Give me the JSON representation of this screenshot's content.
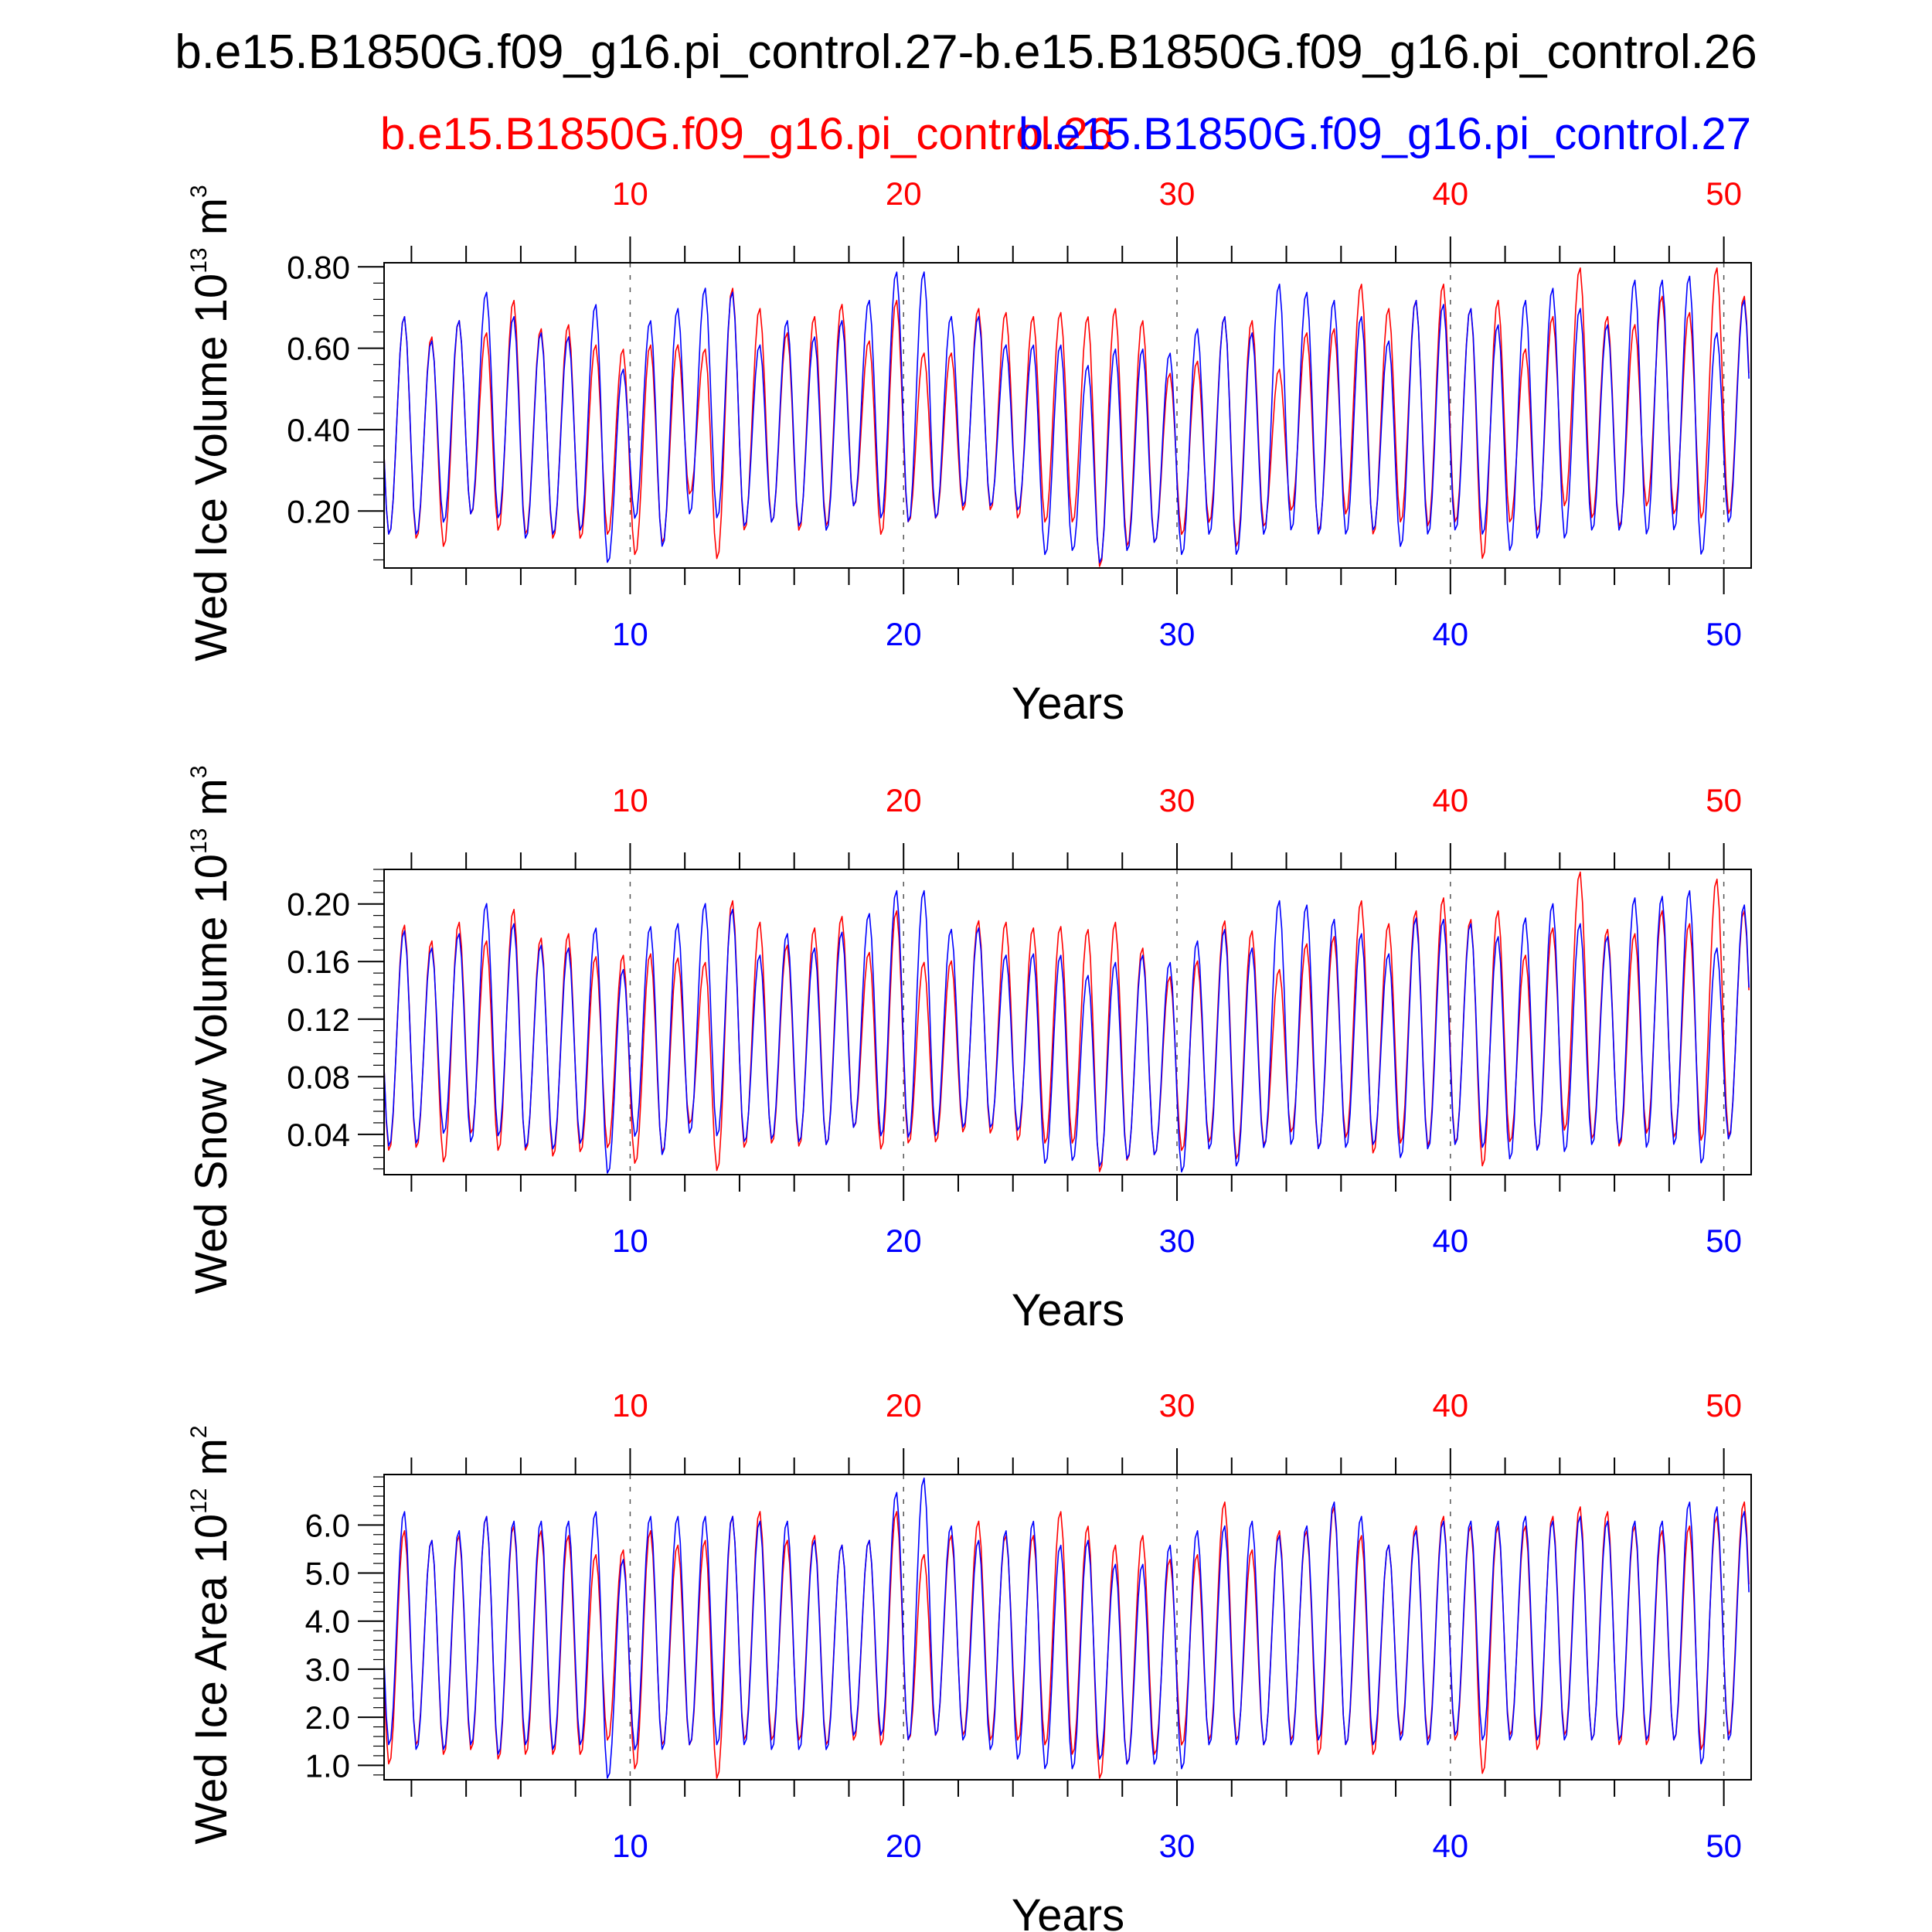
{
  "figure": {
    "title": "b.e15.B1850G.f09_g16.pi_control.27-b.e15.B1850G.f09_g16.pi_control.26",
    "legend_left": "b.e15.B1850G.f09_g16.pi_control.26",
    "legend_right": "b.e15.B1850G.f09_g16.pi_control.27",
    "color_case1": "#ff0000",
    "color_case2": "#0000ff"
  },
  "chart_data": [
    {
      "type": "line",
      "title": "",
      "ylabel": "Wed Ice Volume 10",
      "ylabel_exp": "13",
      "ylabel_unit": "m",
      "ylabel_unit_exp": "3",
      "xlabel": "Years",
      "xlim": [
        1,
        51
      ],
      "ylim": [
        0.06,
        0.81
      ],
      "xticks": [
        10,
        20,
        30,
        40,
        50
      ],
      "yticks": [
        0.2,
        0.4,
        0.6,
        0.8
      ],
      "ytick_labels": [
        "0.20",
        "0.40",
        "0.60",
        "0.80"
      ],
      "yminor_step": 0.04,
      "series": [
        {
          "name": "b.e15.B1850G.f09_g16.pi_control.26",
          "color": "#ff0000",
          "annual_max": [
            0.68,
            0.63,
            0.67,
            0.64,
            0.72,
            0.65,
            0.66,
            0.61,
            0.6,
            0.61,
            0.61,
            0.6,
            0.75,
            0.7,
            0.64,
            0.68,
            0.71,
            0.62,
            0.72,
            0.59,
            0.59,
            0.7,
            0.69,
            0.68,
            0.69,
            0.68,
            0.7,
            0.67,
            0.54,
            0.57,
            0.68,
            0.67,
            0.55,
            0.64,
            0.65,
            0.76,
            0.7,
            0.72,
            0.76,
            0.7,
            0.72,
            0.6,
            0.68,
            0.8,
            0.68,
            0.66,
            0.73,
            0.69,
            0.8,
            0.73
          ],
          "annual_min": [
            0.14,
            0.13,
            0.11,
            0.19,
            0.15,
            0.14,
            0.13,
            0.13,
            0.14,
            0.09,
            0.12,
            0.24,
            0.08,
            0.15,
            0.17,
            0.15,
            0.16,
            0.21,
            0.14,
            0.17,
            0.18,
            0.2,
            0.2,
            0.18,
            0.17,
            0.17,
            0.06,
            0.11,
            0.12,
            0.14,
            0.17,
            0.11,
            0.16,
            0.2,
            0.15,
            0.19,
            0.14,
            0.17,
            0.16,
            0.17,
            0.08,
            0.17,
            0.15,
            0.21,
            0.18,
            0.16,
            0.21,
            0.19,
            0.18,
            0.19
          ]
        },
        {
          "name": "b.e15.B1850G.f09_g16.pi_control.27",
          "color": "#0000ff",
          "annual_max": [
            0.68,
            0.62,
            0.67,
            0.74,
            0.68,
            0.64,
            0.63,
            0.71,
            0.55,
            0.67,
            0.7,
            0.75,
            0.74,
            0.61,
            0.67,
            0.63,
            0.67,
            0.72,
            0.79,
            0.79,
            0.68,
            0.68,
            0.61,
            0.61,
            0.61,
            0.56,
            0.6,
            0.6,
            0.59,
            0.65,
            0.68,
            0.64,
            0.76,
            0.74,
            0.72,
            0.68,
            0.62,
            0.72,
            0.71,
            0.7,
            0.66,
            0.72,
            0.75,
            0.7,
            0.66,
            0.77,
            0.77,
            0.78,
            0.64,
            0.72
          ],
          "annual_min": [
            0.14,
            0.14,
            0.17,
            0.19,
            0.18,
            0.13,
            0.14,
            0.15,
            0.07,
            0.18,
            0.11,
            0.19,
            0.18,
            0.16,
            0.17,
            0.16,
            0.15,
            0.21,
            0.18,
            0.17,
            0.18,
            0.21,
            0.21,
            0.2,
            0.09,
            0.1,
            0.07,
            0.1,
            0.12,
            0.09,
            0.14,
            0.09,
            0.14,
            0.15,
            0.14,
            0.14,
            0.15,
            0.11,
            0.14,
            0.15,
            0.14,
            0.1,
            0.13,
            0.13,
            0.15,
            0.15,
            0.14,
            0.15,
            0.09,
            0.17
          ]
        }
      ]
    },
    {
      "type": "line",
      "title": "",
      "ylabel": "Wed Snow Volume 10",
      "ylabel_exp": "13",
      "ylabel_unit": "m",
      "ylabel_unit_exp": "3",
      "xlabel": "Years",
      "xlim": [
        1,
        51
      ],
      "ylim": [
        0.012,
        0.224
      ],
      "xticks": [
        10,
        20,
        30,
        40,
        50
      ],
      "yticks": [
        0.04,
        0.08,
        0.12,
        0.16,
        0.2
      ],
      "ytick_labels": [
        "0.04",
        "0.08",
        "0.12",
        "0.16",
        "0.20"
      ],
      "yminor_step": 0.008,
      "series": [
        {
          "name": "b.e15.B1850G.f09_g16.pi_control.26",
          "color": "#ff0000",
          "annual_max": [
            0.186,
            0.175,
            0.188,
            0.175,
            0.197,
            0.177,
            0.18,
            0.164,
            0.165,
            0.166,
            0.163,
            0.16,
            0.203,
            0.188,
            0.172,
            0.184,
            0.192,
            0.167,
            0.196,
            0.16,
            0.161,
            0.189,
            0.188,
            0.184,
            0.185,
            0.183,
            0.188,
            0.17,
            0.15,
            0.161,
            0.189,
            0.182,
            0.155,
            0.173,
            0.178,
            0.203,
            0.187,
            0.196,
            0.205,
            0.19,
            0.196,
            0.165,
            0.184,
            0.223,
            0.183,
            0.18,
            0.196,
            0.187,
            0.218,
            0.196
          ],
          "annual_min": [
            0.028,
            0.03,
            0.02,
            0.04,
            0.028,
            0.028,
            0.024,
            0.027,
            0.03,
            0.019,
            0.027,
            0.047,
            0.014,
            0.03,
            0.033,
            0.031,
            0.032,
            0.044,
            0.029,
            0.033,
            0.034,
            0.041,
            0.04,
            0.035,
            0.033,
            0.033,
            0.013,
            0.021,
            0.025,
            0.028,
            0.034,
            0.022,
            0.032,
            0.041,
            0.03,
            0.037,
            0.026,
            0.033,
            0.031,
            0.033,
            0.017,
            0.034,
            0.029,
            0.042,
            0.036,
            0.031,
            0.04,
            0.037,
            0.035,
            0.038
          ]
        },
        {
          "name": "b.e15.B1850G.f09_g16.pi_control.27",
          "color": "#0000ff",
          "annual_max": [
            0.182,
            0.17,
            0.18,
            0.201,
            0.187,
            0.172,
            0.17,
            0.184,
            0.155,
            0.185,
            0.187,
            0.201,
            0.197,
            0.165,
            0.18,
            0.17,
            0.181,
            0.194,
            0.21,
            0.21,
            0.183,
            0.184,
            0.165,
            0.166,
            0.165,
            0.151,
            0.16,
            0.165,
            0.16,
            0.175,
            0.183,
            0.17,
            0.203,
            0.2,
            0.19,
            0.18,
            0.166,
            0.191,
            0.19,
            0.187,
            0.178,
            0.191,
            0.201,
            0.187,
            0.178,
            0.205,
            0.206,
            0.21,
            0.17,
            0.2
          ],
          "annual_min": [
            0.031,
            0.033,
            0.04,
            0.034,
            0.038,
            0.03,
            0.029,
            0.033,
            0.012,
            0.038,
            0.025,
            0.04,
            0.038,
            0.034,
            0.036,
            0.034,
            0.032,
            0.044,
            0.038,
            0.037,
            0.038,
            0.044,
            0.044,
            0.042,
            0.019,
            0.021,
            0.017,
            0.022,
            0.025,
            0.013,
            0.029,
            0.017,
            0.03,
            0.032,
            0.029,
            0.03,
            0.032,
            0.023,
            0.029,
            0.032,
            0.03,
            0.022,
            0.028,
            0.027,
            0.032,
            0.033,
            0.03,
            0.032,
            0.019,
            0.036
          ]
        }
      ]
    },
    {
      "type": "line",
      "title": "",
      "ylabel": "Wed Ice Area 10",
      "ylabel_exp": "12",
      "ylabel_unit": "m",
      "ylabel_unit_exp": "2",
      "xlabel": "Years",
      "xlim": [
        1,
        51
      ],
      "ylim": [
        0.7,
        7.05
      ],
      "xticks": [
        10,
        20,
        30,
        40,
        50
      ],
      "yticks": [
        1,
        2,
        3,
        4,
        5,
        6
      ],
      "ytick_labels": [
        "1.0",
        "2.0",
        "3.0",
        "4.0",
        "5.0",
        "6.0"
      ],
      "yminor_step": 0.2,
      "series": [
        {
          "name": "b.e15.B1850G.f09_g16.pi_control.26",
          "color": "#ff0000",
          "annual_max": [
            5.9,
            5.7,
            5.8,
            6.2,
            6.0,
            5.9,
            5.8,
            5.4,
            5.5,
            5.9,
            5.6,
            5.7,
            6.2,
            6.3,
            5.7,
            5.8,
            5.6,
            5.7,
            6.3,
            5.4,
            5.8,
            6.1,
            5.8,
            5.8,
            6.3,
            6.0,
            5.6,
            5.8,
            5.3,
            5.4,
            6.5,
            5.5,
            5.9,
            5.9,
            6.4,
            5.8,
            5.6,
            6.0,
            6.2,
            6.0,
            6.0,
            6.0,
            6.2,
            6.4,
            6.3,
            6.0,
            5.9,
            6.0,
            6.2,
            6.5
          ],
          "annual_min": [
            1.0,
            1.4,
            1.2,
            1.3,
            1.1,
            1.2,
            1.2,
            1.2,
            1.5,
            0.9,
            1.4,
            1.4,
            0.7,
            1.5,
            1.5,
            1.5,
            1.4,
            1.5,
            1.4,
            1.5,
            1.6,
            1.6,
            1.5,
            1.5,
            1.4,
            1.2,
            0.7,
            1.0,
            1.2,
            1.4,
            1.5,
            1.5,
            1.4,
            1.5,
            1.2,
            1.4,
            1.2,
            1.6,
            1.5,
            1.5,
            0.8,
            1.6,
            1.3,
            1.6,
            1.5,
            1.4,
            1.4,
            1.5,
            1.3,
            1.6
          ]
        },
        {
          "name": "b.e15.B1850G.f09_g16.pi_control.27",
          "color": "#0000ff",
          "annual_max": [
            6.3,
            5.7,
            5.9,
            6.2,
            6.1,
            6.1,
            6.1,
            6.3,
            5.3,
            6.2,
            6.2,
            6.2,
            6.2,
            6.1,
            6.1,
            5.7,
            5.6,
            5.7,
            6.7,
            7.0,
            6.0,
            5.7,
            5.9,
            6.1,
            5.6,
            5.7,
            5.2,
            5.2,
            5.6,
            5.9,
            6.0,
            6.1,
            5.8,
            6.0,
            6.5,
            6.2,
            5.6,
            5.9,
            6.1,
            6.1,
            6.1,
            6.2,
            6.1,
            6.2,
            6.1,
            6.1,
            6.1,
            6.5,
            6.4,
            6.3
          ],
          "annual_min": [
            1.4,
            1.3,
            1.3,
            1.4,
            1.2,
            1.4,
            1.3,
            1.4,
            0.7,
            1.3,
            1.3,
            1.4,
            1.4,
            1.4,
            1.3,
            1.3,
            1.3,
            1.6,
            1.6,
            1.5,
            1.6,
            1.5,
            1.3,
            1.1,
            0.9,
            0.9,
            1.1,
            1.0,
            1.0,
            0.9,
            1.4,
            1.4,
            1.4,
            1.4,
            1.5,
            1.4,
            1.4,
            1.5,
            1.4,
            1.6,
            1.5,
            1.5,
            1.5,
            1.5,
            1.5,
            1.5,
            1.5,
            1.5,
            1.0,
            1.5
          ]
        }
      ]
    }
  ]
}
